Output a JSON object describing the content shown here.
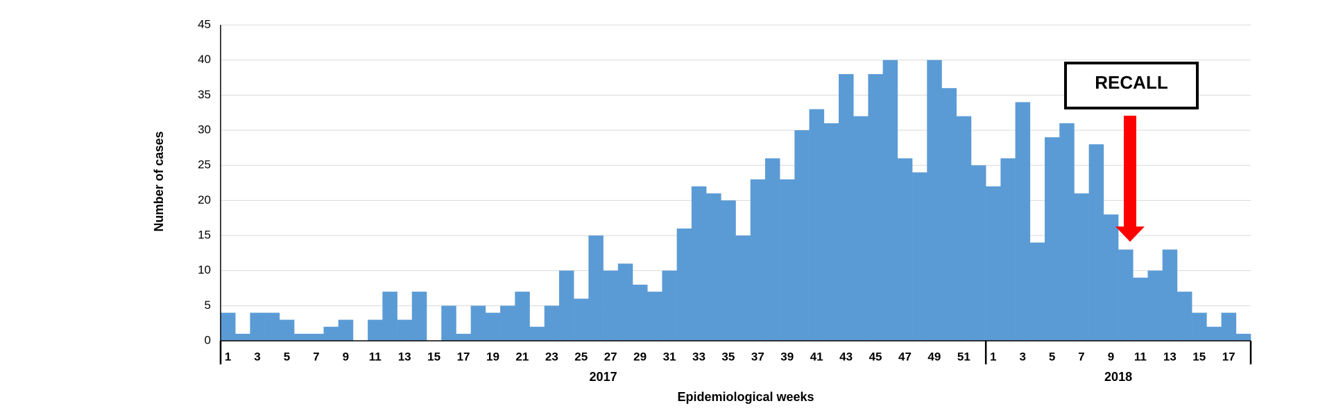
{
  "chart_data": {
    "type": "bar",
    "y_label": "Number of cases",
    "x_label": "Epidemiological weeks",
    "color": "#5b9bd5",
    "grid": true,
    "ylim": [
      0,
      45
    ],
    "yticks": [
      0,
      5,
      10,
      15,
      20,
      25,
      30,
      35,
      40,
      45
    ],
    "annotation": "RECALL",
    "groups": [
      {
        "name": "2017",
        "categories": [
          1,
          null,
          3,
          null,
          5,
          null,
          7,
          null,
          9,
          null,
          11,
          null,
          13,
          null,
          15,
          null,
          17,
          null,
          19,
          null,
          21,
          null,
          23,
          null,
          25,
          null,
          27,
          null,
          29,
          null,
          31,
          null,
          33,
          null,
          35,
          null,
          37,
          null,
          39,
          null,
          41,
          null,
          43,
          null,
          45,
          null,
          47,
          null,
          49,
          null,
          51,
          null
        ],
        "values": [
          4,
          1,
          4,
          4,
          3,
          1,
          1,
          2,
          3,
          0,
          3,
          7,
          3,
          7,
          0,
          5,
          1,
          5,
          4,
          5,
          7,
          2,
          5,
          10,
          6,
          15,
          10,
          11,
          8,
          7,
          10,
          16,
          22,
          21,
          20,
          15,
          23,
          26,
          23,
          30,
          33,
          31,
          38,
          32,
          38,
          40,
          26,
          24,
          40,
          36,
          32,
          25
        ]
      },
      {
        "name": "2018",
        "categories": [
          1,
          null,
          3,
          null,
          5,
          null,
          7,
          null,
          9,
          null,
          11,
          null,
          13,
          null,
          15,
          null,
          17,
          null
        ],
        "values": [
          22,
          26,
          34,
          14,
          29,
          31,
          21,
          28,
          18,
          13,
          9,
          10,
          13,
          7,
          4,
          2,
          4,
          1
        ]
      }
    ]
  }
}
